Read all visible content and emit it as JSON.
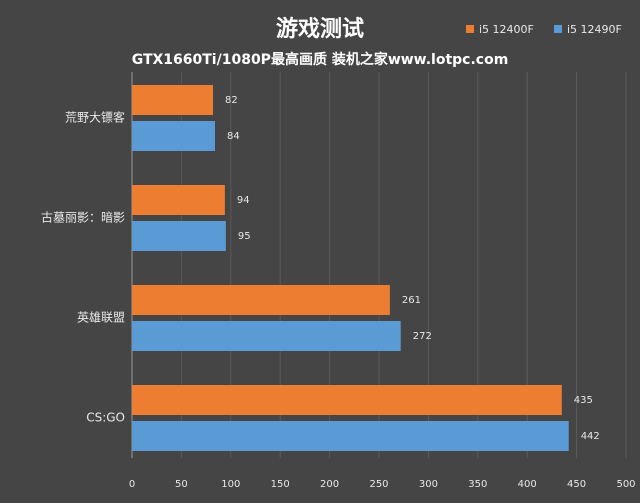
{
  "chart_data": {
    "type": "hbar",
    "title": "游戏测试",
    "subtitle": "GTX1660Ti/1080P最高画质 装机之家www.lotpc.com",
    "categories": [
      "荒野大镖客",
      "古墓丽影：暗影",
      "英雄联盟",
      "CS:GO"
    ],
    "series": [
      {
        "name": "i5 12400F",
        "color": "#ed7d31",
        "values": [
          82,
          94,
          261,
          435
        ]
      },
      {
        "name": "i5 12490F",
        "color": "#5b9bd5",
        "values": [
          84,
          95,
          272,
          442
        ]
      }
    ],
    "xlim": [
      0,
      500
    ],
    "xticks": [
      0,
      50,
      100,
      150,
      200,
      250,
      300,
      350,
      400,
      450,
      500
    ],
    "grid": true,
    "legend": "top-right"
  }
}
